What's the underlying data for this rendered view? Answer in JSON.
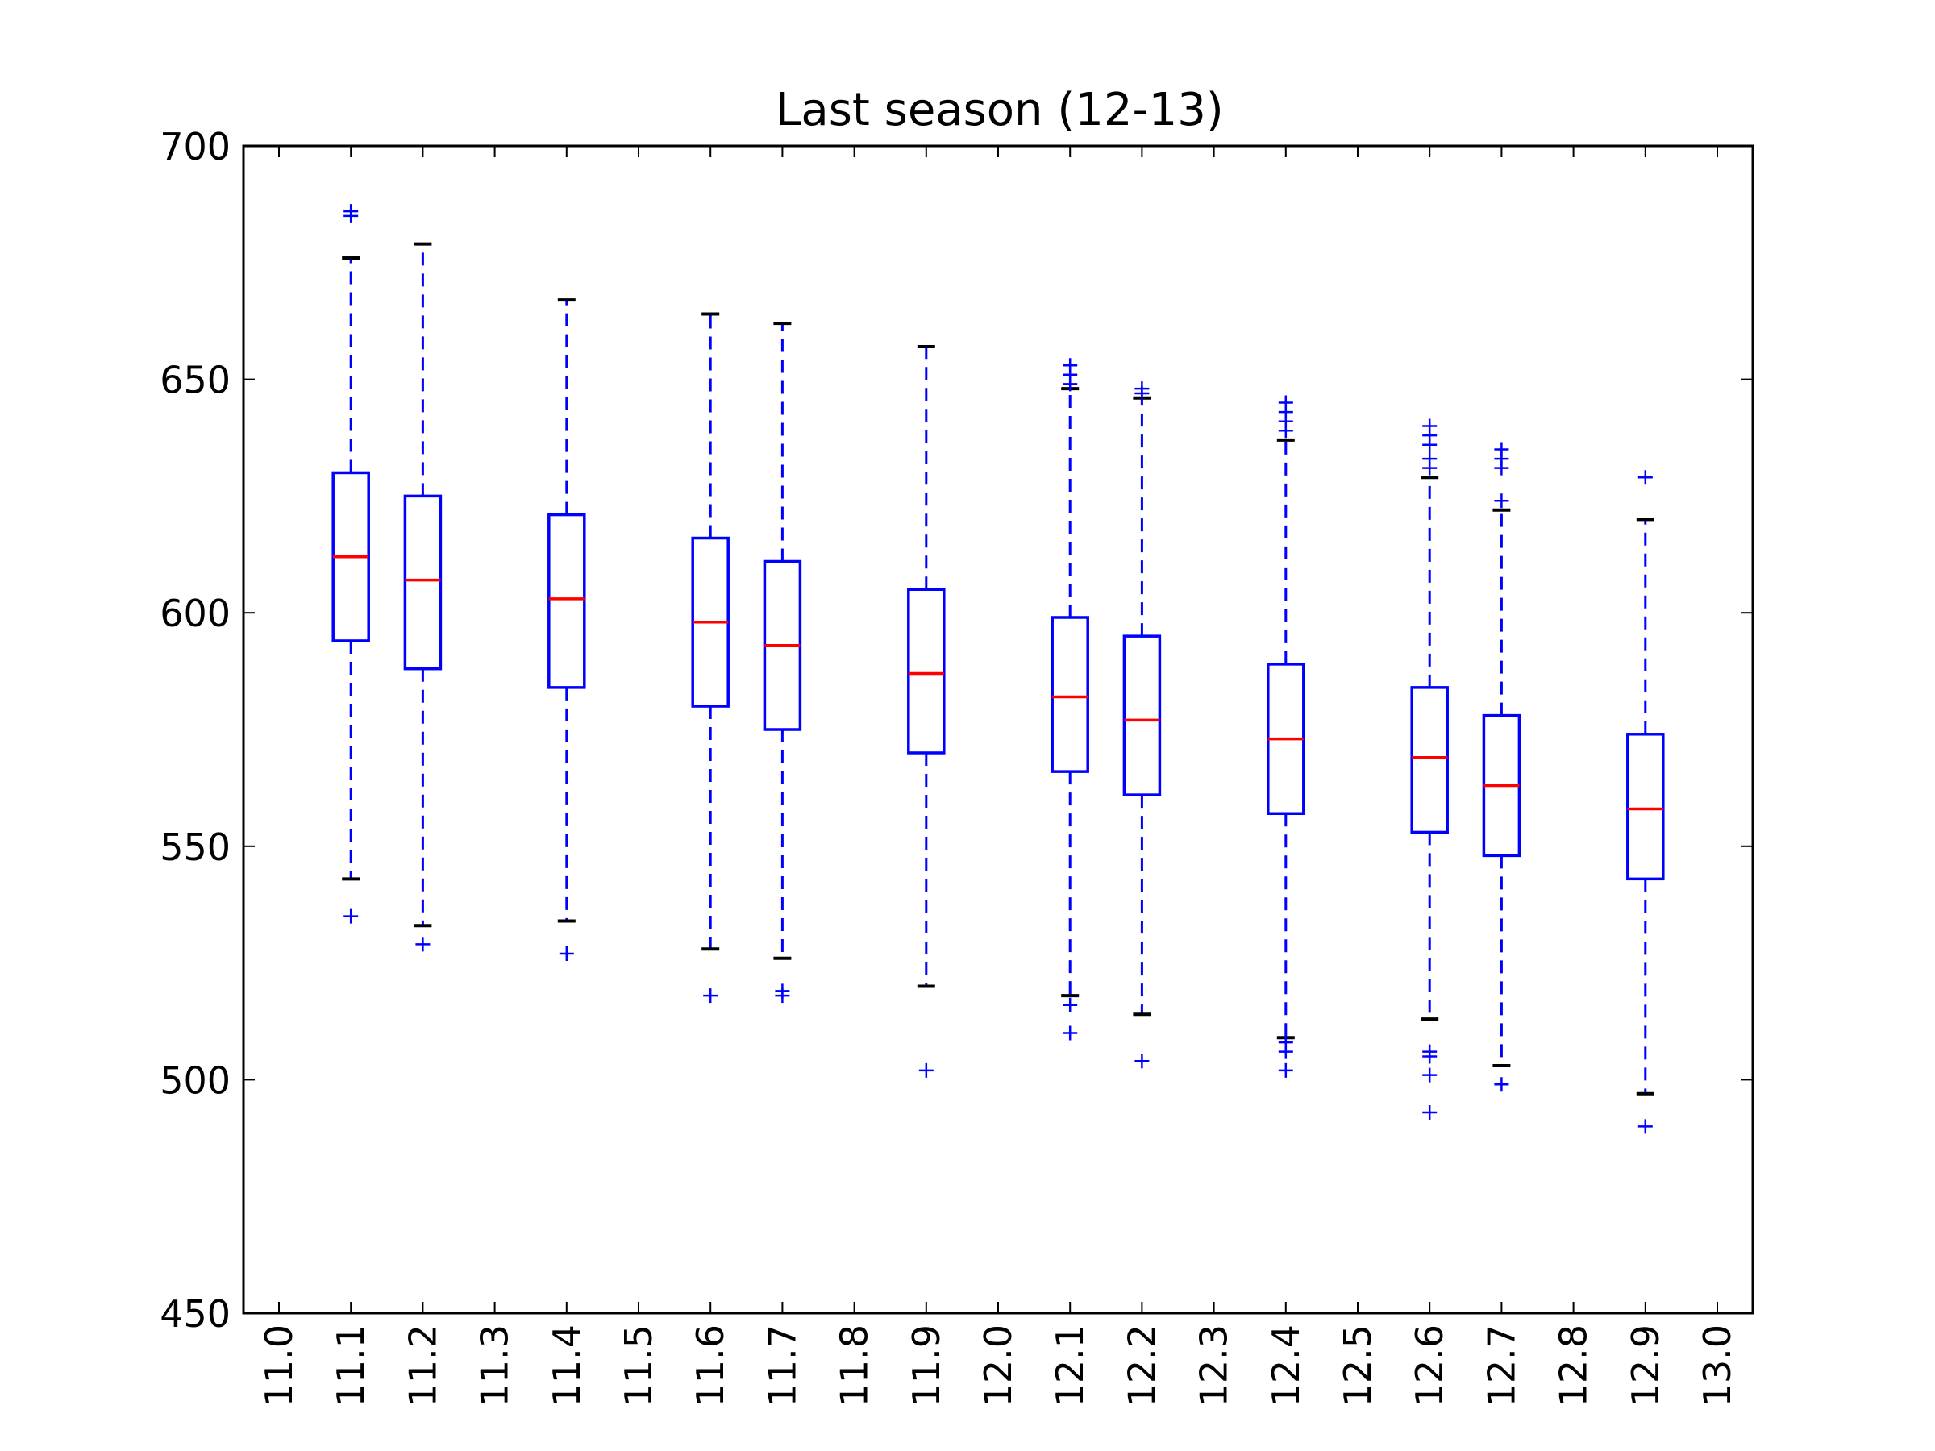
{
  "chart_data": {
    "type": "box",
    "title": "Last season (12-13)",
    "xlabel": "",
    "ylabel": "",
    "xlim": [
      11.0,
      13.0
    ],
    "ylim": [
      450,
      700
    ],
    "x_ticks": [
      "11.0",
      "11.1",
      "11.2",
      "11.3",
      "11.4",
      "11.5",
      "11.6",
      "11.7",
      "11.8",
      "11.9",
      "12.0",
      "12.1",
      "12.2",
      "12.3",
      "12.4",
      "12.5",
      "12.6",
      "12.7",
      "12.8",
      "12.9",
      "13.0"
    ],
    "y_ticks": [
      450,
      500,
      550,
      600,
      650,
      700
    ],
    "grid": false,
    "colors": {
      "box": "#0000ff",
      "whisker": "#0000ff",
      "cap": "#000000",
      "median": "#ff0000",
      "flier": "#0000ff"
    },
    "boxes": [
      {
        "x": 11.1,
        "whislo": 543,
        "q1": 594,
        "med": 612,
        "q3": 630,
        "whishi": 676,
        "fliers": [
          535,
          685,
          686
        ]
      },
      {
        "x": 11.2,
        "whislo": 533,
        "q1": 588,
        "med": 607,
        "q3": 625,
        "whishi": 679,
        "fliers": [
          529
        ]
      },
      {
        "x": 11.4,
        "whislo": 534,
        "q1": 584,
        "med": 603,
        "q3": 621,
        "whishi": 667,
        "fliers": [
          527
        ]
      },
      {
        "x": 11.6,
        "whislo": 528,
        "q1": 580,
        "med": 598,
        "q3": 616,
        "whishi": 664,
        "fliers": [
          518
        ]
      },
      {
        "x": 11.7,
        "whislo": 526,
        "q1": 575,
        "med": 593,
        "q3": 611,
        "whishi": 662,
        "fliers": [
          518,
          519
        ]
      },
      {
        "x": 11.9,
        "whislo": 520,
        "q1": 570,
        "med": 587,
        "q3": 605,
        "whishi": 657,
        "fliers": [
          502
        ]
      },
      {
        "x": 12.1,
        "whislo": 518,
        "q1": 566,
        "med": 582,
        "q3": 599,
        "whishi": 648,
        "fliers": [
          510,
          516,
          649,
          651,
          653
        ]
      },
      {
        "x": 12.2,
        "whislo": 514,
        "q1": 561,
        "med": 577,
        "q3": 595,
        "whishi": 646,
        "fliers": [
          504,
          647,
          648
        ]
      },
      {
        "x": 12.4,
        "whislo": 509,
        "q1": 557,
        "med": 573,
        "q3": 589,
        "whishi": 637,
        "fliers": [
          502,
          506,
          508,
          639,
          641,
          643,
          645
        ]
      },
      {
        "x": 12.6,
        "whislo": 513,
        "q1": 553,
        "med": 569,
        "q3": 584,
        "whishi": 629,
        "fliers": [
          493,
          501,
          505,
          506,
          631,
          633,
          636,
          638,
          640
        ]
      },
      {
        "x": 12.7,
        "whislo": 503,
        "q1": 548,
        "med": 563,
        "q3": 578,
        "whishi": 622,
        "fliers": [
          499,
          624,
          631,
          633,
          635
        ]
      },
      {
        "x": 12.9,
        "whislo": 497,
        "q1": 543,
        "med": 558,
        "q3": 574,
        "whishi": 620,
        "fliers": [
          490,
          629
        ]
      }
    ]
  }
}
